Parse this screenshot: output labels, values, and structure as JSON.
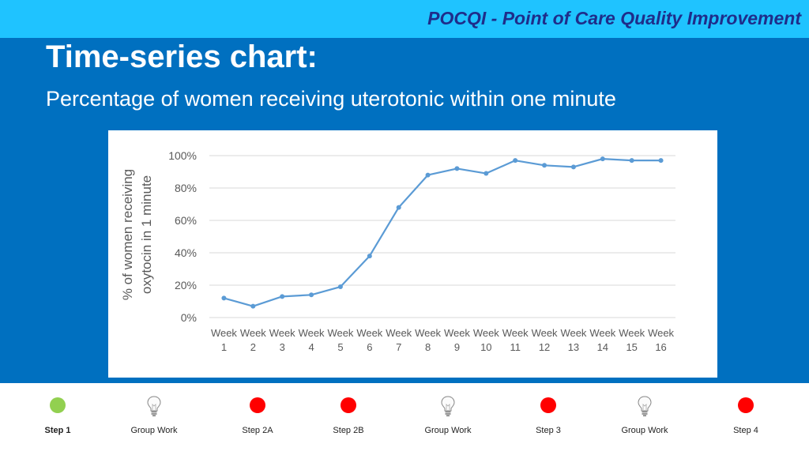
{
  "header": {
    "brand": "POCQI - Point of Care Quality Improvement",
    "title": "Time-series chart:",
    "subtitle": "Percentage of women receiving uterotonic within one minute"
  },
  "chart_data": {
    "type": "line",
    "title": "",
    "ylabel": "% of women receiving oxytocin in 1 minute",
    "ylabel_lines": [
      "% of women receiving",
      "oxytocin in 1 minute"
    ],
    "xlabel": "",
    "categories": [
      [
        "Week",
        "1"
      ],
      [
        "Week",
        "2"
      ],
      [
        "Week",
        "3"
      ],
      [
        "Week",
        "4"
      ],
      [
        "Week",
        "5"
      ],
      [
        "Week",
        "6"
      ],
      [
        "Week",
        "7"
      ],
      [
        "Week",
        "8"
      ],
      [
        "Week",
        "9"
      ],
      [
        "Week",
        "10"
      ],
      [
        "Week",
        "11"
      ],
      [
        "Week",
        "12"
      ],
      [
        "Week",
        "13"
      ],
      [
        "Week",
        "14"
      ],
      [
        "Week",
        "15"
      ],
      [
        "Week",
        "16"
      ]
    ],
    "values": [
      12,
      7,
      13,
      14,
      19,
      38,
      68,
      88,
      92,
      89,
      97,
      94,
      93,
      98,
      97,
      97
    ],
    "ylim": [
      0,
      100
    ],
    "yticks": [
      0,
      20,
      40,
      60,
      80,
      100
    ],
    "ytick_labels": [
      "0%",
      "20%",
      "40%",
      "60%",
      "80%",
      "100%"
    ],
    "grid": true,
    "line_color": "#5b9bd5"
  },
  "footer": {
    "steps": [
      {
        "label": "Step 1",
        "icon": "green-dot-icon",
        "color": "#92d050",
        "active": true
      },
      {
        "label": "Group Work",
        "icon": "lightbulb-icon"
      },
      {
        "label": "Step 2A",
        "icon": "red-dot-icon",
        "color": "#ff0000"
      },
      {
        "label": "Step 2B",
        "icon": "red-dot-icon",
        "color": "#ff0000"
      },
      {
        "label": "Group Work",
        "icon": "lightbulb-icon"
      },
      {
        "label": "Step 3",
        "icon": "red-dot-icon",
        "color": "#ff0000"
      },
      {
        "label": "Group Work",
        "icon": "lightbulb-icon"
      },
      {
        "label": "Step 4",
        "icon": "red-dot-icon",
        "color": "#ff0000"
      }
    ]
  }
}
